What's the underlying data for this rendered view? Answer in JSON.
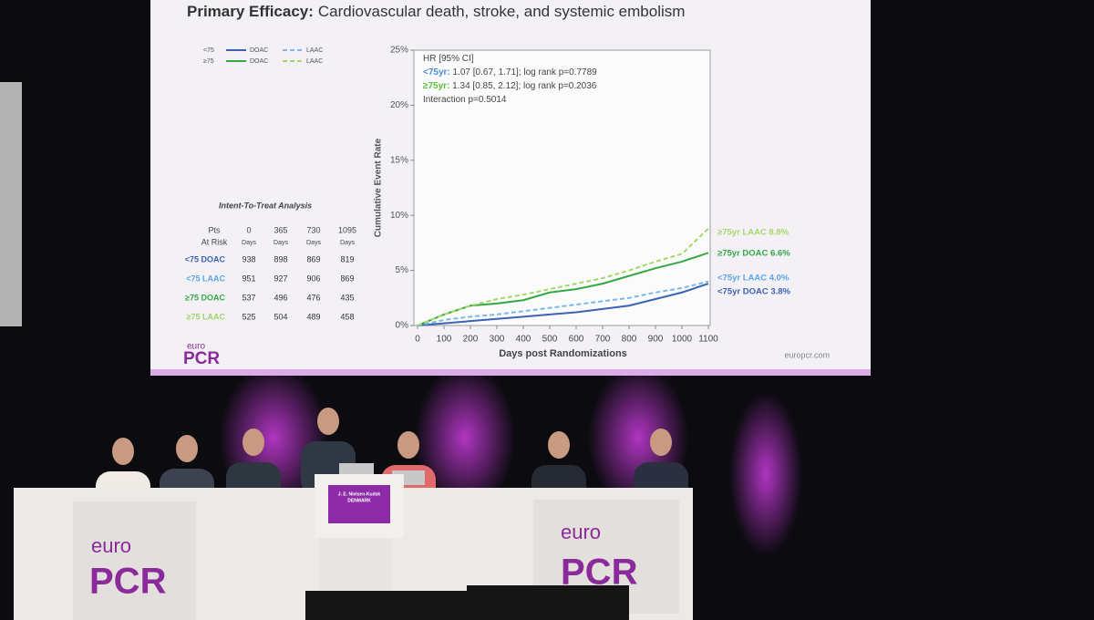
{
  "slide": {
    "title_bold": "Primary Efficacy:",
    "title": "Cardiovascular death, stroke, and systemic embolism",
    "table": {
      "title": "Intent-To-Treat Analysis",
      "corner": [
        "Pts",
        "At Risk"
      ],
      "columns": [
        "0",
        "365",
        "730",
        "1095"
      ],
      "unit": "Days",
      "rows": [
        {
          "label": "<75 DOAC",
          "color": "#3b63b5",
          "cells": [
            "938",
            "898",
            "869",
            "819"
          ]
        },
        {
          "label": "<75 LAAC",
          "color": "#5aa6e6",
          "cells": [
            "951",
            "927",
            "906",
            "869"
          ]
        },
        {
          "label": "≥75 DOAC",
          "color": "#33a845",
          "cells": [
            "537",
            "496",
            "476",
            "435"
          ]
        },
        {
          "label": "≥75 LAAC",
          "color": "#9fd36a",
          "cells": [
            "525",
            "504",
            "489",
            "458"
          ]
        }
      ]
    },
    "logo": [
      "euro",
      "PCR"
    ],
    "url": "europcr.com"
  },
  "chart_data": {
    "type": "line",
    "xlabel": "Days post Randomizations",
    "ylabel": "Cumulative Event Rate",
    "x": [
      0,
      100,
      200,
      300,
      400,
      500,
      600,
      700,
      800,
      900,
      1000,
      1100
    ],
    "xlim": [
      0,
      1100
    ],
    "xticks": [
      0,
      100,
      200,
      300,
      400,
      500,
      600,
      700,
      800,
      900,
      1000,
      1100
    ],
    "ylim": [
      0,
      25
    ],
    "yticks": [
      {
        "value": 0,
        "label": "0%"
      },
      {
        "value": 5,
        "label": "5%"
      },
      {
        "value": 10,
        "label": "10%"
      },
      {
        "value": 15,
        "label": "15%"
      },
      {
        "value": 20,
        "label": "20%"
      },
      {
        "value": 25,
        "label": "25%"
      }
    ],
    "legend_groups": [
      "<75",
      "≥75"
    ],
    "series": [
      {
        "name": "DOAC",
        "color": "#3b63b5",
        "dashed": false,
        "values": [
          0,
          0.2,
          0.4,
          0.6,
          0.8,
          1.0,
          1.2,
          1.5,
          1.8,
          2.4,
          3.0,
          3.8
        ]
      },
      {
        "name": "LAAC",
        "color": "#7db7e8",
        "dashed": true,
        "values": [
          0,
          0.5,
          0.8,
          1.0,
          1.3,
          1.6,
          1.9,
          2.2,
          2.5,
          3.0,
          3.4,
          4.0
        ]
      },
      {
        "name": "DOAC",
        "color": "#33a845",
        "dashed": false,
        "values": [
          0,
          1.0,
          1.8,
          2.0,
          2.3,
          3.0,
          3.3,
          3.8,
          4.5,
          5.2,
          5.8,
          6.6
        ]
      },
      {
        "name": "LAAC",
        "color": "#a6d86a",
        "dashed": true,
        "values": [
          0,
          1.0,
          1.8,
          2.4,
          2.8,
          3.3,
          3.8,
          4.3,
          5.0,
          5.8,
          6.5,
          8.8
        ]
      }
    ],
    "annotation": [
      {
        "text": "HR [95% CI]"
      },
      {
        "lead": "<75yr:",
        "color": "#4a8fd8",
        "text": " 1.07 [0.67, 1.71]; log rank p=0.7789"
      },
      {
        "lead": "≥75yr:",
        "color": "#5cbf3a",
        "text": " 1.34 [0.85, 2.12]; log rank p=0.2036"
      },
      {
        "text": "Interaction p=0.5014"
      }
    ],
    "end_labels": [
      {
        "text": "≥75yr LAAC 8.8%",
        "color": "#a6d86a"
      },
      {
        "text": "≥75yr DOAC 6.6%",
        "color": "#33a845"
      },
      {
        "text": "<75yr LAAC 4.0%",
        "color": "#5aa6e6"
      },
      {
        "text": "<75yr DOAC 3.8%",
        "color": "#3b63b5"
      }
    ]
  },
  "stage": {
    "desk_logo": [
      "euro",
      "PCR"
    ],
    "nameplate": [
      "J. E. Nielsen-Kudsk",
      "DENMARK"
    ]
  }
}
